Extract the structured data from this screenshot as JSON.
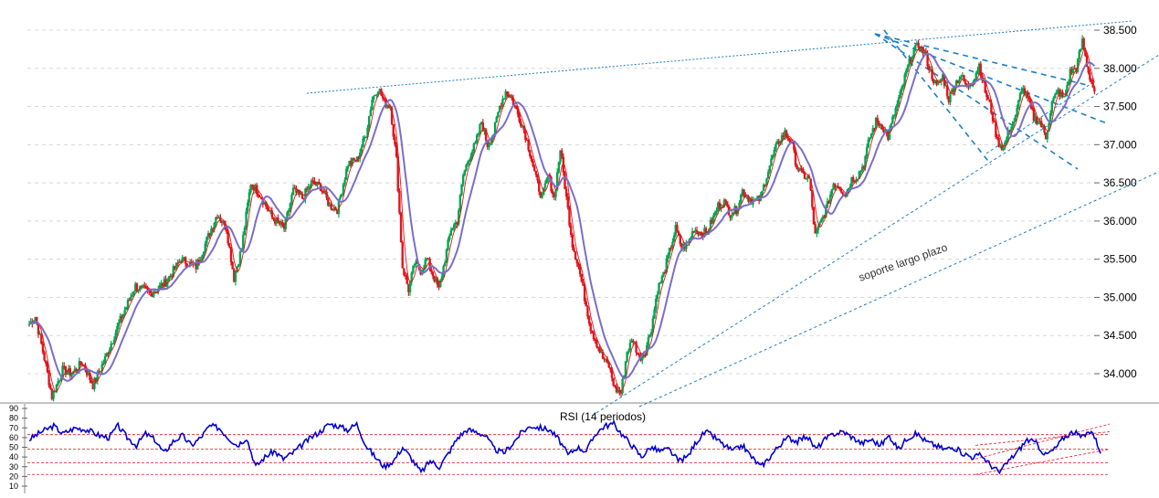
{
  "chart_data": [
    {
      "type": "candlestick",
      "ylim": [
        33.6,
        38.65
      ],
      "y_ticks": [
        "34.000",
        "34.500",
        "35.000",
        "35.500",
        "36.000",
        "36.500",
        "37.000",
        "37.500",
        "38.000",
        "38.500"
      ],
      "grid": true,
      "colors": {
        "up": "#00a650",
        "down": "#e0151b",
        "ma_fast": "#e0151b",
        "ma_slow": "#7a6ec8",
        "trend": "#1a7ec4"
      },
      "price_path": [
        [
          0,
          34.65
        ],
        [
          4,
          34.75
        ],
        [
          10,
          34.2
        ],
        [
          15,
          33.7
        ],
        [
          22,
          34.05
        ],
        [
          28,
          34.0
        ],
        [
          35,
          34.15
        ],
        [
          42,
          33.85
        ],
        [
          50,
          34.2
        ],
        [
          60,
          34.7
        ],
        [
          70,
          35.15
        ],
        [
          80,
          35.05
        ],
        [
          90,
          35.2
        ],
        [
          100,
          35.5
        ],
        [
          110,
          35.4
        ],
        [
          118,
          35.8
        ],
        [
          124,
          36.1
        ],
        [
          130,
          35.9
        ],
        [
          135,
          35.25
        ],
        [
          140,
          35.65
        ],
        [
          146,
          36.5
        ],
        [
          152,
          36.35
        ],
        [
          160,
          36.05
        ],
        [
          168,
          35.9
        ],
        [
          174,
          36.4
        ],
        [
          180,
          36.3
        ],
        [
          186,
          36.5
        ],
        [
          192,
          36.45
        ],
        [
          198,
          36.2
        ],
        [
          203,
          36.15
        ],
        [
          210,
          36.75
        ],
        [
          216,
          36.8
        ],
        [
          222,
          37.15
        ],
        [
          226,
          37.6
        ],
        [
          230,
          37.75
        ],
        [
          234,
          37.55
        ],
        [
          238,
          37.5
        ],
        [
          242,
          36.8
        ],
        [
          246,
          35.4
        ],
        [
          250,
          35.1
        ],
        [
          254,
          35.45
        ],
        [
          258,
          35.35
        ],
        [
          262,
          35.5
        ],
        [
          266,
          35.3
        ],
        [
          270,
          35.1
        ],
        [
          274,
          35.5
        ],
        [
          278,
          35.9
        ],
        [
          282,
          36.0
        ],
        [
          286,
          36.6
        ],
        [
          290,
          36.85
        ],
        [
          294,
          37.0
        ],
        [
          298,
          37.3
        ],
        [
          302,
          37.0
        ],
        [
          306,
          37.15
        ],
        [
          310,
          37.5
        ],
        [
          314,
          37.7
        ],
        [
          318,
          37.6
        ],
        [
          322,
          37.4
        ],
        [
          326,
          37.2
        ],
        [
          330,
          36.9
        ],
        [
          334,
          36.55
        ],
        [
          338,
          36.3
        ],
        [
          342,
          36.6
        ],
        [
          346,
          36.3
        ],
        [
          350,
          36.95
        ],
        [
          354,
          36.3
        ],
        [
          358,
          35.7
        ],
        [
          362,
          35.4
        ],
        [
          366,
          35.0
        ],
        [
          370,
          34.6
        ],
        [
          374,
          34.4
        ],
        [
          378,
          34.2
        ],
        [
          382,
          34.1
        ],
        [
          386,
          33.8
        ],
        [
          390,
          33.75
        ],
        [
          394,
          34.3
        ],
        [
          398,
          34.45
        ],
        [
          402,
          34.2
        ],
        [
          406,
          34.3
        ],
        [
          410,
          34.6
        ],
        [
          414,
          35.1
        ],
        [
          418,
          35.3
        ],
        [
          422,
          35.6
        ],
        [
          426,
          35.9
        ],
        [
          430,
          35.65
        ],
        [
          434,
          35.7
        ],
        [
          438,
          35.9
        ],
        [
          442,
          35.85
        ],
        [
          446,
          35.85
        ],
        [
          450,
          36.0
        ],
        [
          454,
          36.2
        ],
        [
          458,
          36.25
        ],
        [
          462,
          36.1
        ],
        [
          466,
          36.15
        ],
        [
          470,
          36.4
        ],
        [
          474,
          36.3
        ],
        [
          478,
          36.25
        ],
        [
          482,
          36.3
        ],
        [
          486,
          36.6
        ],
        [
          490,
          36.85
        ],
        [
          494,
          37.05
        ],
        [
          498,
          37.15
        ],
        [
          502,
          37.05
        ],
        [
          506,
          36.7
        ],
        [
          510,
          36.6
        ],
        [
          514,
          36.55
        ],
        [
          518,
          35.8
        ],
        [
          522,
          36.0
        ],
        [
          526,
          36.2
        ],
        [
          530,
          36.5
        ],
        [
          534,
          36.45
        ],
        [
          538,
          36.35
        ],
        [
          542,
          36.55
        ],
        [
          546,
          36.6
        ],
        [
          550,
          36.75
        ],
        [
          554,
          37.1
        ],
        [
          558,
          37.3
        ],
        [
          562,
          37.25
        ],
        [
          566,
          37.1
        ],
        [
          570,
          37.4
        ],
        [
          574,
          37.65
        ],
        [
          578,
          37.95
        ],
        [
          582,
          38.2
        ],
        [
          586,
          38.3
        ],
        [
          590,
          38.2
        ],
        [
          594,
          37.95
        ],
        [
          598,
          37.75
        ],
        [
          602,
          37.9
        ],
        [
          606,
          37.6
        ],
        [
          610,
          37.8
        ],
        [
          614,
          37.9
        ],
        [
          618,
          37.75
        ],
        [
          622,
          37.85
        ],
        [
          626,
          38.05
        ],
        [
          630,
          37.7
        ],
        [
          634,
          37.45
        ],
        [
          638,
          37.05
        ],
        [
          642,
          36.95
        ],
        [
          646,
          37.2
        ],
        [
          650,
          37.35
        ],
        [
          654,
          37.75
        ],
        [
          658,
          37.6
        ],
        [
          662,
          37.35
        ],
        [
          666,
          37.3
        ],
        [
          670,
          37.1
        ],
        [
          674,
          37.55
        ],
        [
          678,
          37.7
        ],
        [
          682,
          37.6
        ],
        [
          686,
          37.95
        ],
        [
          690,
          38.0
        ],
        [
          694,
          38.35
        ],
        [
          698,
          37.95
        ],
        [
          702,
          37.7
        ]
      ],
      "trend_lines": [
        {
          "style": "dotted",
          "from": [
            0.33,
            0.097
          ],
          "to": [
            0.977,
            0.038
          ]
        }
      ]
    },
    {
      "type": "line",
      "title": "RSI (14 periodos)",
      "ylim": [
        0,
        90
      ],
      "y_ticks": [
        "10",
        "20",
        "30",
        "40",
        "50",
        "60",
        "70",
        "80",
        "90"
      ],
      "reference_levels": [
        63,
        48,
        34,
        22
      ],
      "colors": {
        "line": "#0000cc",
        "levels": "#e0151b"
      },
      "rsi_path": [
        [
          0,
          58
        ],
        [
          8,
          66
        ],
        [
          16,
          72
        ],
        [
          22,
          64
        ],
        [
          30,
          70
        ],
        [
          38,
          68
        ],
        [
          46,
          62
        ],
        [
          52,
          60
        ],
        [
          58,
          72
        ],
        [
          64,
          60
        ],
        [
          70,
          52
        ],
        [
          76,
          64
        ],
        [
          82,
          58
        ],
        [
          88,
          44
        ],
        [
          94,
          56
        ],
        [
          100,
          62
        ],
        [
          106,
          52
        ],
        [
          112,
          60
        ],
        [
          118,
          72
        ],
        [
          124,
          70
        ],
        [
          130,
          60
        ],
        [
          136,
          52
        ],
        [
          142,
          60
        ],
        [
          148,
          30
        ],
        [
          154,
          40
        ],
        [
          160,
          46
        ],
        [
          166,
          38
        ],
        [
          172,
          44
        ],
        [
          178,
          52
        ],
        [
          184,
          60
        ],
        [
          190,
          66
        ],
        [
          196,
          74
        ],
        [
          202,
          72
        ],
        [
          208,
          68
        ],
        [
          214,
          74
        ],
        [
          220,
          52
        ],
        [
          226,
          40
        ],
        [
          232,
          30
        ],
        [
          238,
          36
        ],
        [
          244,
          50
        ],
        [
          250,
          38
        ],
        [
          256,
          24
        ],
        [
          262,
          36
        ],
        [
          268,
          30
        ],
        [
          274,
          44
        ],
        [
          280,
          60
        ],
        [
          286,
          68
        ],
        [
          292,
          66
        ],
        [
          298,
          62
        ],
        [
          304,
          48
        ],
        [
          310,
          44
        ],
        [
          316,
          54
        ],
        [
          322,
          66
        ],
        [
          328,
          72
        ],
        [
          334,
          70
        ],
        [
          340,
          68
        ],
        [
          346,
          58
        ],
        [
          352,
          42
        ],
        [
          358,
          50
        ],
        [
          364,
          46
        ],
        [
          370,
          64
        ],
        [
          376,
          72
        ],
        [
          382,
          74
        ],
        [
          388,
          62
        ],
        [
          394,
          52
        ],
        [
          400,
          40
        ],
        [
          406,
          50
        ],
        [
          412,
          46
        ],
        [
          418,
          48
        ],
        [
          424,
          36
        ],
        [
          430,
          40
        ],
        [
          436,
          56
        ],
        [
          442,
          66
        ],
        [
          448,
          60
        ],
        [
          454,
          52
        ],
        [
          460,
          46
        ],
        [
          466,
          52
        ],
        [
          472,
          40
        ],
        [
          478,
          30
        ],
        [
          484,
          40
        ],
        [
          490,
          52
        ],
        [
          496,
          60
        ],
        [
          502,
          56
        ],
        [
          508,
          62
        ],
        [
          514,
          48
        ],
        [
          520,
          58
        ],
        [
          526,
          64
        ],
        [
          532,
          66
        ],
        [
          538,
          60
        ],
        [
          544,
          54
        ],
        [
          550,
          58
        ],
        [
          556,
          52
        ],
        [
          562,
          62
        ],
        [
          568,
          48
        ],
        [
          574,
          60
        ],
        [
          580,
          64
        ],
        [
          586,
          56
        ],
        [
          592,
          52
        ],
        [
          598,
          48
        ],
        [
          604,
          50
        ],
        [
          610,
          44
        ],
        [
          616,
          40
        ],
        [
          622,
          42
        ],
        [
          628,
          32
        ],
        [
          634,
          24
        ],
        [
          640,
          36
        ],
        [
          646,
          46
        ],
        [
          652,
          58
        ],
        [
          658,
          54
        ],
        [
          664,
          42
        ],
        [
          670,
          48
        ],
        [
          676,
          60
        ],
        [
          682,
          66
        ],
        [
          688,
          60
        ],
        [
          694,
          68
        ],
        [
          700,
          46
        ]
      ]
    }
  ],
  "annotations": {
    "soporte_label": "soporte largo plazo"
  }
}
